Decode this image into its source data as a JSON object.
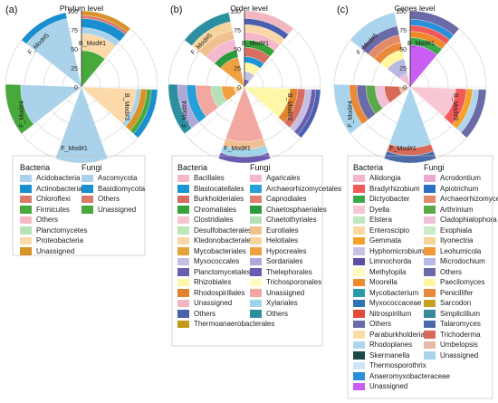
{
  "chart_data": [
    {
      "type": "polar-stacked-bar",
      "panel": "(a)",
      "title": "Phylum level",
      "radial_ticks": [
        "0",
        "25",
        "50",
        "75",
        "100"
      ],
      "rlim": [
        0,
        100
      ],
      "samples": [
        "B_Mod#1",
        "B_Mod#3",
        "F_Mod#1",
        "F_Mod#4",
        "F_Mod#5"
      ],
      "legend_groups": [
        {
          "name": "Bacteria",
          "labels": [
            "Acidobacteria",
            "Actinobacteria",
            "Chloroflexi",
            "Firmicutes",
            "Others",
            "Planctomycetes",
            "Proteobacteria",
            "Unassigned"
          ]
        },
        {
          "name": "Fungi",
          "labels": [
            "Ascomycota",
            "Basidiomycota",
            "Others",
            "Unassigned"
          ]
        }
      ],
      "colors": {
        "Acidobacteria": "#aad2ea",
        "Actinobacteria": "#1a8fd0",
        "Chloroflexi": "#d97a6b",
        "Firmicutes": "#47a83b",
        "Others": "#f4b9c2",
        "Planctomycetes": "#b8e3b8",
        "Proteobacteria": "#fbd9a8",
        "Unassigned": "#d99227",
        "Ascomycota": "#aad2ea",
        "Basidiomycota": "#1a8fd0",
        "Others_F": "#d97a6b",
        "Unassigned_F": "#47a83b"
      },
      "series": [
        {
          "name": "B_Mod#1",
          "segments": [
            {
              "label": "Firmicutes",
              "value": 48
            },
            {
              "label": "Proteobacteria",
              "value": 22
            },
            {
              "label": "Acidobacteria",
              "value": 8
            },
            {
              "label": "Actinobacteria",
              "value": 12
            },
            {
              "label": "Chloroflexi",
              "value": 4
            },
            {
              "label": "Unassigned",
              "value": 6
            }
          ]
        },
        {
          "name": "B_Mod#3",
          "segments": [
            {
              "label": "Proteobacteria",
              "value": 72
            },
            {
              "label": "Acidobacteria",
              "value": 6
            },
            {
              "label": "Unassigned",
              "value": 8
            },
            {
              "label": "Firmicutes",
              "value": 6
            },
            {
              "label": "Actinobacteria",
              "value": 8
            }
          ]
        },
        {
          "name": "F_Mod#1",
          "segments": [
            {
              "label": "Ascomycota",
              "value": 100
            }
          ]
        },
        {
          "name": "F_Mod#4",
          "segments": [
            {
              "label": "Ascomycota",
              "value": 80
            },
            {
              "label": "Unassigned_F",
              "value": 20
            }
          ]
        },
        {
          "name": "F_Mod#5",
          "segments": [
            {
              "label": "Ascomycota",
              "value": 92
            },
            {
              "label": "Basidiomycota",
              "value": 8
            }
          ]
        }
      ]
    },
    {
      "type": "polar-stacked-bar",
      "panel": "(b)",
      "title": "Order level",
      "radial_ticks": [
        "0",
        "25",
        "50",
        "75",
        "100"
      ],
      "rlim": [
        0,
        100
      ],
      "samples": [
        "B_Mod#1",
        "B_Mod#3",
        "F_Mod#1",
        "F_Mod#4",
        "F_Mod#5"
      ],
      "legend_groups": [
        {
          "name": "Bacteria",
          "labels": [
            "Bacillales",
            "Blastocatellales",
            "Burkholderiales",
            "Chromatiales",
            "Clostridiales",
            "Desulfobacterales",
            "Ktedonobacterales",
            "Mycobacteriales",
            "Myxococcales",
            "Planctomycetales",
            "Rhizobiales",
            "Rhodospirillales",
            "Unassigned",
            "Others",
            "Thermoanaerobacterales"
          ]
        },
        {
          "name": "Fungi",
          "labels": [
            "Agaricales",
            "Archaeorhizomycetales",
            "Capnodiales",
            "Chaetosphaeriales",
            "Chaetothyriales",
            "Eurotiales",
            "Helotiales",
            "Hypocreales",
            "Sordariales",
            "Thelephorales",
            "Trichosporonales",
            "Unassigned",
            "Xylariales",
            "Others"
          ]
        }
      ],
      "colors": {
        "Bacillales": "#f6b8c8",
        "Blastocatellales": "#1b95d3",
        "Burkholderiales": "#d86d61",
        "Chromatiales": "#36a23a",
        "Clostridiales": "#f7c4d0",
        "Desulfobacterales": "#bfe6b7",
        "Ktedonobacterales": "#fbd6a6",
        "Mycobacteriales": "#e3a23b",
        "Myxococcales": "#c3c0e1",
        "Planctomycetales": "#6a5fae",
        "Rhizobiales": "#fff7a8",
        "Rhodospirillales": "#e2842c",
        "Unassigned": "#f2b6c0",
        "Others": "#4a5fae",
        "Thermoanaerobacterales": "#c19b17",
        "Agaricales": "#f4b8d0",
        "Archaeorhizomycetales": "#25a0d8",
        "Capnodiales": "#e08070",
        "Chaetosphaeriales": "#2c9b3e",
        "Chaetothyriales": "#b8e0b8",
        "Eurotiales": "#f0c090",
        "Helotiales": "#f7d49a",
        "Hypocreales": "#f0a040",
        "Sordariales": "#b0a8d8",
        "Thelephorales": "#6b5bb0",
        "Trichosporonales": "#fffac0",
        "Unassigned_F": "#f2a8a0",
        "Xylariales": "#a0d4ea",
        "Others_F": "#2b8fa0"
      },
      "series": [
        {
          "name": "B_Mod#1",
          "segments": [
            {
              "label": "Planctomycetales",
              "value": 10
            },
            {
              "label": "Myxococcales",
              "value": 10
            },
            {
              "label": "Rhizobiales",
              "value": 12
            },
            {
              "label": "Blastocatellales",
              "value": 8
            },
            {
              "label": "Burkholderiales",
              "value": 12
            },
            {
              "label": "Chromatiales",
              "value": 10
            },
            {
              "label": "Bacillales",
              "value": 10
            },
            {
              "label": "Ktedonobacterales",
              "value": 10
            },
            {
              "label": "Others",
              "value": 8
            },
            {
              "label": "Unassigned",
              "value": 10
            }
          ]
        },
        {
          "name": "B_Mod#3",
          "segments": [
            {
              "label": "Rhizobiales",
              "value": 60
            },
            {
              "label": "Rhodospirillales",
              "value": 10
            },
            {
              "label": "Burkholderiales",
              "value": 10
            },
            {
              "label": "Myxococcales",
              "value": 8
            },
            {
              "label": "Planctomycetales",
              "value": 6
            },
            {
              "label": "Others",
              "value": 6
            }
          ]
        },
        {
          "name": "F_Mod#1",
          "segments": [
            {
              "label": "Unassigned_F",
              "value": 72
            },
            {
              "label": "Eurotiales",
              "value": 10
            },
            {
              "label": "Xylariales",
              "value": 10
            },
            {
              "label": "Thelephorales",
              "value": 8
            }
          ]
        },
        {
          "name": "F_Mod#4",
          "segments": [
            {
              "label": "Helotiales",
              "value": 14
            },
            {
              "label": "Hypocreales",
              "value": 16
            },
            {
              "label": "Chaetothyriales",
              "value": 14
            },
            {
              "label": "Unassigned_F",
              "value": 20
            },
            {
              "label": "Archaeorhizomycetales",
              "value": 12
            },
            {
              "label": "Sordariales",
              "value": 12
            },
            {
              "label": "Others_F",
              "value": 12
            }
          ]
        },
        {
          "name": "F_Mod#5",
          "segments": [
            {
              "label": "Hypocreales",
              "value": 40
            },
            {
              "label": "Chaetosphaeriales",
              "value": 10
            },
            {
              "label": "Agaricales",
              "value": 14
            },
            {
              "label": "Eurotiales",
              "value": 12
            },
            {
              "label": "Helotiales",
              "value": 12
            },
            {
              "label": "Others_F",
              "value": 12
            }
          ]
        }
      ]
    },
    {
      "type": "polar-stacked-bar",
      "panel": "(c)",
      "title": "Genes level",
      "radial_ticks": [
        "0",
        "25",
        "50",
        "75",
        "100"
      ],
      "rlim": [
        0,
        100
      ],
      "samples": [
        "B_Mod#1",
        "B_Mod#3",
        "F_Mod#1",
        "F_Mod#4",
        "F_Mod#5"
      ],
      "legend_groups": [
        {
          "name": "Bacteria",
          "labels": [
            "Aliidongia",
            "Bradyrhizobium",
            "Dictyobacter",
            "Dyella",
            "Elstera",
            "Enteroscipio",
            "Gemmata",
            "Hyphomicrobium",
            "Limnochorda",
            "Methylopila",
            "Moorella",
            "Mycobacterium",
            "Myxococcaceae",
            "Nitrospirillum",
            "Others",
            "Paraburkholderia",
            "Rhodoplanes",
            "Skermanella",
            "Thermosporothrix",
            "Anaeromyxobacteraceae",
            "Unassigned"
          ]
        },
        {
          "name": "Fungi",
          "labels": [
            "Acrodontium",
            "Apiotrichum",
            "Archaeorhizomyces",
            "Arthrinium",
            "Cladophialophora",
            "Exophiala",
            "Ilyonectria",
            "Leohumicola",
            "Microdochium",
            "Others",
            "Paecilomyces",
            "Penicillifer",
            "Sarcodon",
            "Simplicillium",
            "Talaromyces",
            "Trichoderma",
            "Umbelopsis",
            "Unassigned"
          ]
        }
      ],
      "colors": {
        "Aliidongia": "#f4b6c8",
        "Bradyrhizobium": "#f25a5a",
        "Dictyobacter": "#3aa84a",
        "Dyella": "#f7c8d4",
        "Elstera": "#bde8c0",
        "Enteroscipio": "#fcd7a4",
        "Gemmata": "#f5a12a",
        "Hyphomicrobium": "#c8c2e6",
        "Limnochorda": "#5a4fa8",
        "Methylopila": "#fffac0",
        "Moorella": "#ee8a2a",
        "Mycobacterium": "#2b9aa8",
        "Myxococcaceae": "#2f74b4",
        "Nitrospirillum": "#e34a3a",
        "Others": "#6a6aa8",
        "Paraburkholderia": "#fbdca8",
        "Rhodoplanes": "#b0d4ea",
        "Skermanella": "#1c4a4a",
        "Thermosporothrix": "#cfe4f4",
        "Anaeromyxobacteraceae": "#2a8fd8",
        "Unassigned": "#c85ef2",
        "Acrodontium": "#e8a8d0",
        "Apiotrichum": "#2a6fc4",
        "Archaeorhizomyces": "#e28a6a",
        "Arthrinium": "#5aa84a",
        "Cladophialophora": "#f0c0d8",
        "Exophiala": "#c8ecc8",
        "Ilyonectria": "#f8d49a",
        "Leohumicola": "#f29a3a",
        "Microdochium": "#b8b8e4",
        "Others_F": "#6a6aa8",
        "Paecilomyces": "#fff6a0",
        "Penicillifer": "#e88a3a",
        "Sarcodon": "#c8a020",
        "Simplicillium": "#3a8a9a",
        "Talaromyces": "#4a6aa8",
        "Trichoderma": "#d86a5a",
        "Umbelopsis": "#e8b8a8",
        "Unassigned_F": "#a8d4ee"
      },
      "series": [
        {
          "name": "B_Mod#1",
          "segments": [
            {
              "label": "Unassigned",
              "value": 55
            },
            {
              "label": "Dictyobacter",
              "value": 10
            },
            {
              "label": "Moorella",
              "value": 8
            },
            {
              "label": "Bradyrhizobium",
              "value": 8
            },
            {
              "label": "Anaeromyxobacteraceae",
              "value": 8
            },
            {
              "label": "Others",
              "value": 11
            }
          ]
        },
        {
          "name": "B_Mod#3",
          "segments": [
            {
              "label": "Dyella",
              "value": 60
            },
            {
              "label": "Bradyrhizobium",
              "value": 14
            },
            {
              "label": "Gemmata",
              "value": 8
            },
            {
              "label": "Rhodoplanes",
              "value": 8
            },
            {
              "label": "Others",
              "value": 10
            }
          ]
        },
        {
          "name": "F_Mod#1",
          "segments": [
            {
              "label": "Unassigned_F",
              "value": 80
            },
            {
              "label": "Trichoderma",
              "value": 10
            },
            {
              "label": "Talaromyces",
              "value": 10
            }
          ]
        },
        {
          "name": "F_Mod#4",
          "segments": [
            {
              "label": "Umbelopsis",
              "value": 14
            },
            {
              "label": "Trichoderma",
              "value": 20
            },
            {
              "label": "Cladophialophora",
              "value": 12
            },
            {
              "label": "Arthrinium",
              "value": 12
            },
            {
              "label": "Others_F",
              "value": 12
            },
            {
              "label": "Penicillifer",
              "value": 10
            },
            {
              "label": "Unassigned_F",
              "value": 20
            }
          ]
        },
        {
          "name": "F_Mod#5",
          "segments": [
            {
              "label": "Cladophialophora",
              "value": 18
            },
            {
              "label": "Microdochium",
              "value": 20
            },
            {
              "label": "Paecilomyces",
              "value": 12
            },
            {
              "label": "Penicillifer",
              "value": 10
            },
            {
              "label": "Archaeorhizomyces",
              "value": 10
            },
            {
              "label": "Others_F",
              "value": 12
            },
            {
              "label": "Unassigned_F",
              "value": 18
            }
          ]
        }
      ]
    }
  ]
}
